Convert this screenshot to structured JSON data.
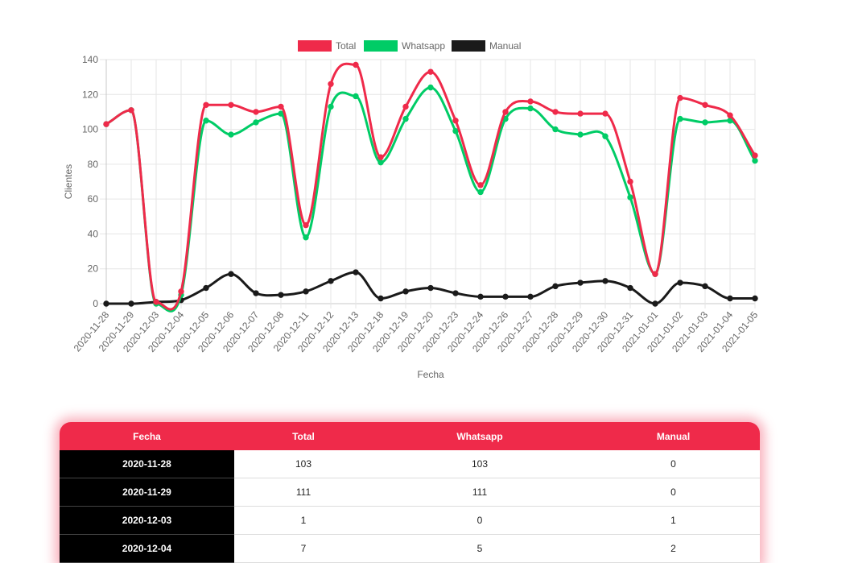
{
  "chart_data": {
    "type": "line",
    "xlabel": "Fecha",
    "ylabel": "Clientes",
    "ylim": [
      0,
      140
    ],
    "yticks": [
      0,
      20,
      40,
      60,
      80,
      100,
      120,
      140
    ],
    "grid": true,
    "legend_position": "top",
    "categories": [
      "2020-11-28",
      "2020-11-29",
      "2020-12-03",
      "2020-12-04",
      "2020-12-05",
      "2020-12-06",
      "2020-12-07",
      "2020-12-08",
      "2020-12-11",
      "2020-12-12",
      "2020-12-13",
      "2020-12-18",
      "2020-12-19",
      "2020-12-20",
      "2020-12-23",
      "2020-12-24",
      "2020-12-26",
      "2020-12-27",
      "2020-12-28",
      "2020-12-29",
      "2020-12-30",
      "2020-12-31",
      "2021-01-01",
      "2021-01-02",
      "2021-01-03",
      "2021-01-04",
      "2021-01-05"
    ],
    "series": [
      {
        "name": "Total",
        "color": "#ef2a4a",
        "values": [
          103,
          111,
          1,
          7,
          114,
          114,
          110,
          113,
          45,
          126,
          137,
          84,
          113,
          133,
          105,
          68,
          110,
          116,
          110,
          109,
          109,
          70,
          17,
          118,
          114,
          108,
          85
        ]
      },
      {
        "name": "Whatsapp",
        "color": "#00cc66",
        "values": [
          103,
          111,
          0,
          5,
          105,
          97,
          104,
          109,
          38,
          113,
          119,
          81,
          106,
          124,
          99,
          64,
          106,
          112,
          100,
          97,
          96,
          61,
          17,
          106,
          104,
          105,
          82
        ]
      },
      {
        "name": "Manual",
        "color": "#1a1a1a",
        "values": [
          0,
          0,
          1,
          2,
          9,
          17,
          6,
          5,
          7,
          13,
          18,
          3,
          7,
          9,
          6,
          4,
          4,
          4,
          10,
          12,
          13,
          9,
          0,
          12,
          10,
          3,
          3
        ]
      }
    ]
  },
  "table": {
    "headers": [
      "Fecha",
      "Total",
      "Whatsapp",
      "Manual"
    ],
    "rows": [
      [
        "2020-11-28",
        "103",
        "103",
        "0"
      ],
      [
        "2020-11-29",
        "111",
        "111",
        "0"
      ],
      [
        "2020-12-03",
        "1",
        "0",
        "1"
      ],
      [
        "2020-12-04",
        "7",
        "5",
        "2"
      ]
    ]
  }
}
